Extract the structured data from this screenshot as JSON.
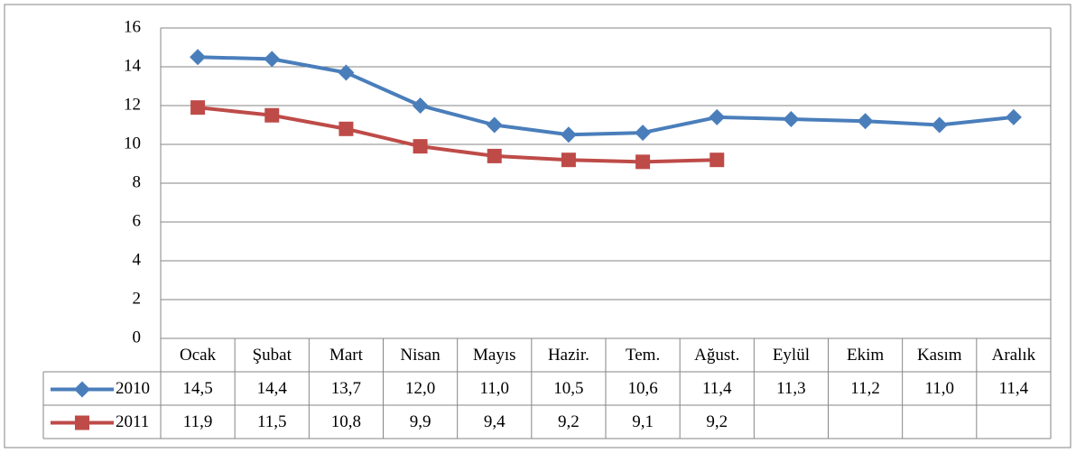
{
  "chart_data": {
    "type": "line",
    "categories": [
      "Ocak",
      "Şubat",
      "Mart",
      "Nisan",
      "Mayıs",
      "Hazir.",
      "Tem.",
      "Ağust.",
      "Eylül",
      "Ekim",
      "Kasım",
      "Aralık"
    ],
    "series": [
      {
        "name": "2010",
        "color": "#4a7ebb",
        "marker": "diamond",
        "values": [
          14.5,
          14.4,
          13.7,
          12.0,
          11.0,
          10.5,
          10.6,
          11.4,
          11.3,
          11.2,
          11.0,
          11.4
        ],
        "value_labels": [
          "14,5",
          "14,4",
          "13,7",
          "12,0",
          "11,0",
          "10,5",
          "10,6",
          "11,4",
          "11,3",
          "11,2",
          "11,0",
          "11,4"
        ]
      },
      {
        "name": "2011",
        "color": "#be4b48",
        "marker": "square",
        "values": [
          11.9,
          11.5,
          10.8,
          9.9,
          9.4,
          9.2,
          9.1,
          9.2,
          null,
          null,
          null,
          null
        ],
        "value_labels": [
          "11,9",
          "11,5",
          "10,8",
          "9,9",
          "9,4",
          "9,2",
          "9,1",
          "9,2",
          null,
          null,
          null,
          null
        ]
      }
    ],
    "ylim": [
      0,
      16
    ],
    "yticks": [
      0,
      2,
      4,
      6,
      8,
      10,
      12,
      14,
      16
    ],
    "grid": true
  }
}
